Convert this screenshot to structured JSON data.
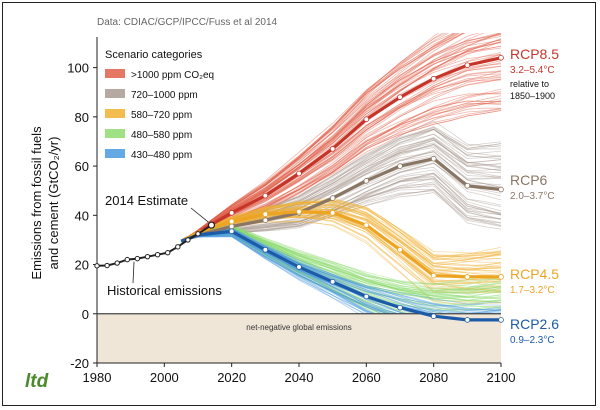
{
  "chart_data": {
    "type": "line",
    "source_note": "Data: CDIAC/GCP/IPCC/Fuss et al 2014",
    "ylabel_line1": "Emissions from fossil fuels",
    "ylabel_line2": "and cement (GtCO₂/yr)",
    "xlim": [
      1980,
      2100
    ],
    "ylim": [
      -20,
      110
    ],
    "x_ticks": [
      1980,
      2000,
      2020,
      2040,
      2060,
      2080,
      2100
    ],
    "y_ticks": [
      -20,
      0,
      20,
      40,
      60,
      80,
      100
    ],
    "grid": false,
    "legend": {
      "title": "Scenario categories",
      "placement": "top-left",
      "entries": [
        {
          "label": ">1000 ppm CO₂eq",
          "color": "#e0604a"
        },
        {
          "label": "720–1000 ppm",
          "color": "#a89a90"
        },
        {
          "label": "580–720 ppm",
          "color": "#f0b030"
        },
        {
          "label": "480–580 ppm",
          "color": "#8fdc70"
        },
        {
          "label": "430–480 ppm",
          "color": "#4a9adf"
        }
      ]
    },
    "annotations": {
      "estimate_2014": "2014 Estimate",
      "historical": "Historical emissions",
      "negative_region": "net-negative global emissions"
    },
    "historical": {
      "color": "#222222",
      "x": [
        1980,
        1983,
        1986,
        1989,
        1992,
        1995,
        1998,
        2001,
        2004,
        2007,
        2010,
        2014
      ],
      "y": [
        19.5,
        19.6,
        20.6,
        22.0,
        22.4,
        23.2,
        24.0,
        24.8,
        27.2,
        30.0,
        32.5,
        36.0
      ]
    },
    "estimate_2014_point": {
      "x": 2014,
      "y": 36.0
    },
    "scenarios": [
      {
        "name": "RCP8.5",
        "range": "3.2–5.4°C",
        "extra": [
          "relative to",
          "1850–1900"
        ],
        "color": "#c6352a",
        "x": [
          2005,
          2010,
          2020,
          2030,
          2040,
          2050,
          2060,
          2070,
          2080,
          2090,
          2100
        ],
        "y": [
          29.5,
          33.0,
          41.0,
          48.0,
          57.0,
          67.0,
          79.0,
          88.0,
          95.5,
          101.0,
          104.0
        ]
      },
      {
        "name": "RCP6",
        "range": "2.0–3.7°C",
        "color": "#8a7664",
        "x": [
          2005,
          2010,
          2020,
          2030,
          2040,
          2050,
          2060,
          2070,
          2080,
          2090,
          2100
        ],
        "y": [
          29.5,
          32.0,
          35.5,
          38.0,
          41.0,
          47.0,
          54.0,
          60.0,
          63.0,
          52.0,
          50.5
        ]
      },
      {
        "name": "RCP4.5",
        "range": "1.7–3.2°C",
        "color": "#eea423",
        "x": [
          2005,
          2010,
          2020,
          2030,
          2040,
          2050,
          2060,
          2070,
          2080,
          2090,
          2100
        ],
        "y": [
          29.5,
          33.0,
          37.5,
          40.5,
          41.5,
          41.0,
          36.0,
          26.0,
          15.5,
          15.0,
          15.0
        ]
      },
      {
        "name": "RCP2.6",
        "range": "0.9–2.3°C",
        "color": "#1d5aa8",
        "x": [
          2005,
          2010,
          2020,
          2030,
          2040,
          2050,
          2060,
          2070,
          2080,
          2090,
          2100
        ],
        "y": [
          29.5,
          32.0,
          33.5,
          26.0,
          19.0,
          13.0,
          7.0,
          2.5,
          -1.0,
          -2.5,
          -2.5
        ]
      }
    ]
  },
  "branding": {
    "logo_text": "ltd",
    "logo_color": "#4a8a2a"
  }
}
